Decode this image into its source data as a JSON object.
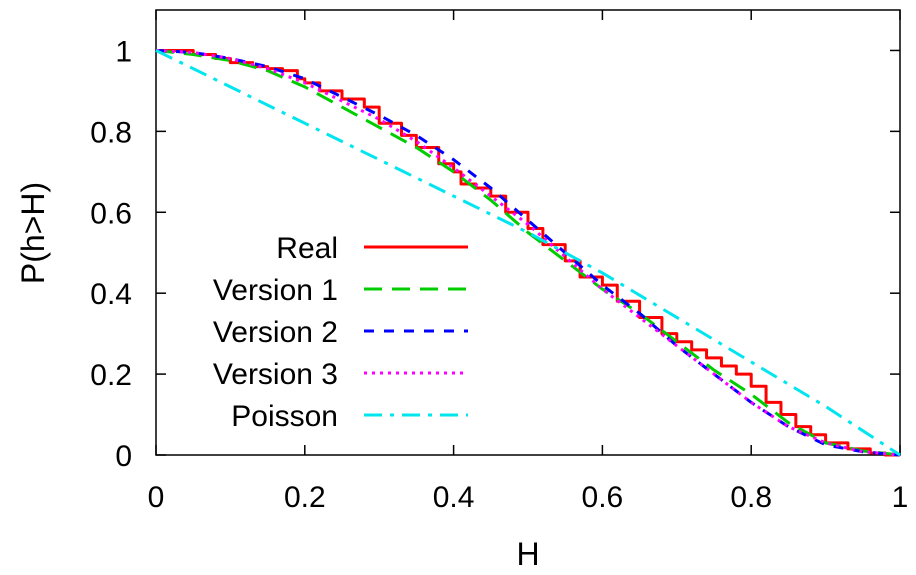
{
  "chart_data": {
    "type": "line",
    "xlabel": "H",
    "ylabel": "P(h>H)",
    "xlim": [
      0,
      1
    ],
    "ylim": [
      0,
      1.1
    ],
    "x_ticks": [
      "0",
      "0.2",
      "0.4",
      "0.6",
      "0.8",
      "1"
    ],
    "y_ticks": [
      "0",
      "0.2",
      "0.4",
      "0.6",
      "0.8",
      "1"
    ],
    "x_tick_values": [
      0,
      0.2,
      0.4,
      0.6,
      0.8,
      1
    ],
    "y_tick_values": [
      0,
      0.2,
      0.4,
      0.6,
      0.8,
      1
    ],
    "legend_position": "left",
    "grid": false,
    "series": [
      {
        "name": "Real",
        "color": "#ff0000",
        "dash": "solid",
        "x": [
          0,
          0.02,
          0.05,
          0.08,
          0.1,
          0.13,
          0.15,
          0.17,
          0.19,
          0.2,
          0.22,
          0.25,
          0.28,
          0.3,
          0.33,
          0.35,
          0.38,
          0.4,
          0.41,
          0.43,
          0.45,
          0.47,
          0.5,
          0.52,
          0.55,
          0.57,
          0.6,
          0.62,
          0.65,
          0.68,
          0.7,
          0.72,
          0.74,
          0.76,
          0.78,
          0.8,
          0.82,
          0.84,
          0.86,
          0.88,
          0.9,
          0.93,
          0.96,
          0.98,
          1
        ],
        "y": [
          1,
          1,
          0.99,
          0.98,
          0.97,
          0.96,
          0.955,
          0.95,
          0.93,
          0.92,
          0.9,
          0.88,
          0.86,
          0.82,
          0.79,
          0.76,
          0.72,
          0.7,
          0.67,
          0.66,
          0.64,
          0.6,
          0.56,
          0.52,
          0.48,
          0.44,
          0.42,
          0.38,
          0.34,
          0.3,
          0.28,
          0.26,
          0.24,
          0.22,
          0.2,
          0.17,
          0.13,
          0.1,
          0.07,
          0.05,
          0.03,
          0.015,
          0.005,
          0,
          0
        ]
      },
      {
        "name": "Version 1",
        "color": "#00cc00",
        "dash": "long-dash",
        "x": [
          0,
          0.05,
          0.1,
          0.15,
          0.2,
          0.25,
          0.3,
          0.35,
          0.4,
          0.45,
          0.5,
          0.55,
          0.6,
          0.65,
          0.7,
          0.75,
          0.8,
          0.85,
          0.9,
          0.95,
          1
        ],
        "y": [
          1,
          0.99,
          0.975,
          0.95,
          0.91,
          0.86,
          0.81,
          0.76,
          0.7,
          0.63,
          0.55,
          0.48,
          0.41,
          0.35,
          0.28,
          0.21,
          0.15,
          0.08,
          0.03,
          0.01,
          0
        ]
      },
      {
        "name": "Version 2",
        "color": "#0000ff",
        "dash": "short-dash",
        "x": [
          0,
          0.05,
          0.1,
          0.15,
          0.2,
          0.25,
          0.3,
          0.35,
          0.4,
          0.45,
          0.5,
          0.55,
          0.6,
          0.65,
          0.7,
          0.75,
          0.8,
          0.85,
          0.9,
          0.95,
          1
        ],
        "y": [
          1,
          0.995,
          0.98,
          0.96,
          0.93,
          0.885,
          0.84,
          0.79,
          0.73,
          0.66,
          0.58,
          0.5,
          0.42,
          0.35,
          0.27,
          0.2,
          0.13,
          0.07,
          0.025,
          0.008,
          0
        ]
      },
      {
        "name": "Version 3",
        "color": "#ff00ff",
        "dash": "dotted",
        "x": [
          0,
          0.05,
          0.1,
          0.15,
          0.2,
          0.25,
          0.3,
          0.35,
          0.4,
          0.45,
          0.5,
          0.55,
          0.6,
          0.65,
          0.7,
          0.75,
          0.8,
          0.85,
          0.9,
          0.95,
          1
        ],
        "y": [
          1,
          0.995,
          0.98,
          0.955,
          0.92,
          0.875,
          0.83,
          0.775,
          0.71,
          0.64,
          0.57,
          0.49,
          0.41,
          0.34,
          0.27,
          0.2,
          0.13,
          0.07,
          0.03,
          0.008,
          0
        ]
      },
      {
        "name": "Poisson",
        "color": "#00e5ee",
        "dash": "dash-dot",
        "x": [
          0,
          0.1,
          0.2,
          0.3,
          0.4,
          0.5,
          0.6,
          0.7,
          0.8,
          0.9,
          1
        ],
        "y": [
          1,
          0.91,
          0.82,
          0.73,
          0.64,
          0.55,
          0.45,
          0.34,
          0.23,
          0.12,
          0
        ]
      }
    ]
  }
}
